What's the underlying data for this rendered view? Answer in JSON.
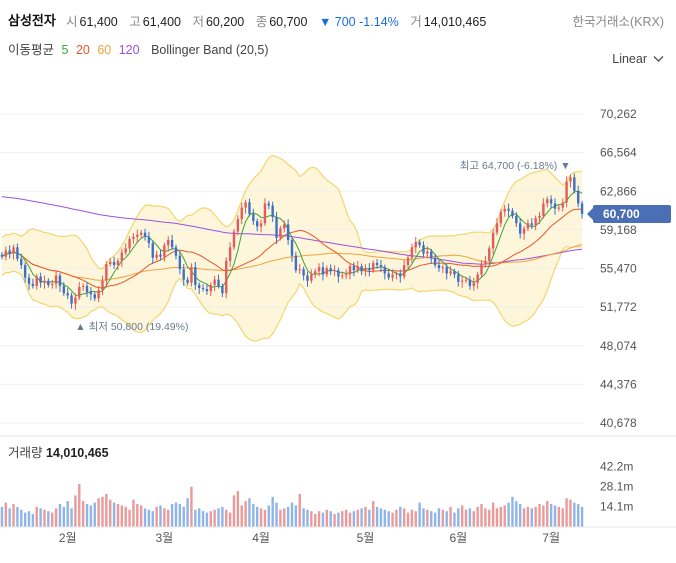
{
  "header": {
    "stock_name": "삼성전자",
    "open_label": "시",
    "open": "61,400",
    "high_label": "고",
    "high": "61,400",
    "low_label": "저",
    "low": "60,200",
    "close_label": "종",
    "close": "60,700",
    "change": "▼ 700 -1.14%",
    "volume_label": "거",
    "volume": "14,010,465",
    "exchange": "한국거래소(KRX)"
  },
  "indicators": {
    "ma_label": "이동평균",
    "ma5": "5",
    "ma20": "20",
    "ma60": "60",
    "ma120": "120",
    "bollinger": "Bollinger Band (20,5)"
  },
  "scale": {
    "label": "Linear"
  },
  "colors": {
    "up": "#e35b5b",
    "down": "#3f6fc6",
    "ma5": "#3aa53a",
    "ma20": "#e8562a",
    "ma60": "#f0a23c",
    "ma120": "#9b52e0",
    "band_fill": "#fdf6da",
    "band_line": "#f3d66d",
    "vol_up": "#eb9a9a",
    "vol_down": "#8fb4e8",
    "price_tag": "#4b6fb5"
  },
  "chart_data": [
    {
      "type": "candlestick",
      "title": "삼성전자",
      "y_ticks": [
        "70,262",
        "66,564",
        "62,866",
        "59,168",
        "55,470",
        "51,772",
        "48,074",
        "44,376",
        "40,678"
      ],
      "y_tick_values": [
        70262,
        66564,
        62866,
        59168,
        55470,
        51772,
        48074,
        44376,
        40678
      ],
      "x_ticks": [
        "2월",
        "3월",
        "4월",
        "5월",
        "6월",
        "7월"
      ],
      "x_tick_index": [
        17,
        42,
        67,
        94,
        118,
        142
      ],
      "last_price_label": "60,700",
      "high_annotation": "최고 64,700 (-6.18%) ▼",
      "low_annotation": "▲ 최저 50,800 (19.49%)",
      "high_annotation_index": 146,
      "low_annotation_index": 20,
      "closes": [
        56600,
        57200,
        56900,
        57500,
        56400,
        55800,
        54600,
        54000,
        53800,
        54700,
        54100,
        54300,
        53900,
        54000,
        54800,
        53800,
        53100,
        52900,
        52100,
        52700,
        53700,
        53800,
        53200,
        53000,
        52600,
        53400,
        54300,
        55900,
        56100,
        55800,
        56200,
        57000,
        57400,
        58300,
        58500,
        58700,
        58900,
        58500,
        57900,
        56500,
        56800,
        56600,
        57700,
        58200,
        57500,
        56700,
        55400,
        54400,
        54100,
        55600,
        53900,
        53600,
        53500,
        53300,
        53900,
        54400,
        53800,
        53100,
        56200,
        57500,
        59000,
        60200,
        61300,
        61800,
        60700,
        60000,
        59500,
        59800,
        61700,
        61500,
        60400,
        58400,
        59300,
        59700,
        58200,
        56700,
        55300,
        55400,
        54800,
        54300,
        54900,
        55200,
        55600,
        54900,
        55500,
        55200,
        55300,
        54700,
        54800,
        54900,
        55700,
        55300,
        55700,
        55200,
        55500,
        55300,
        56000,
        55800,
        55600,
        55000,
        54600,
        54900,
        55000,
        54700,
        55800,
        56500,
        57500,
        58000,
        57700,
        56900,
        57100,
        56500,
        55800,
        55500,
        55600,
        55000,
        55200,
        54900,
        54200,
        54300,
        54400,
        53800,
        54100,
        54900,
        55900,
        56200,
        57400,
        58900,
        59800,
        60900,
        61200,
        61000,
        60500,
        59800,
        58800,
        59300,
        59800,
        59600,
        60300,
        60500,
        61700,
        62100,
        61700,
        61200,
        61300,
        61800,
        63800,
        64200,
        62900,
        61700,
        60700
      ],
      "volumes_m": [
        14,
        17,
        13,
        16,
        14,
        12,
        10,
        11,
        9,
        14,
        13,
        12,
        11,
        10,
        13,
        16,
        14,
        18,
        13,
        22,
        30,
        18,
        16,
        15,
        17,
        20,
        21,
        23,
        19,
        17,
        16,
        15,
        14,
        12,
        19,
        16,
        15,
        13,
        12,
        11,
        14,
        15,
        13,
        12,
        16,
        17,
        16,
        14,
        20,
        28,
        12,
        13,
        11,
        10,
        11,
        12,
        13,
        14,
        12,
        10,
        22,
        25,
        15,
        18,
        20,
        16,
        14,
        13,
        12,
        15,
        21,
        17,
        12,
        13,
        14,
        17,
        15,
        23,
        13,
        12,
        11,
        9,
        11,
        10,
        12,
        11,
        9,
        10,
        11,
        12,
        10,
        11,
        12,
        13,
        14,
        12,
        18,
        14,
        13,
        12,
        11,
        10,
        12,
        14,
        13,
        10,
        12,
        11,
        17,
        13,
        12,
        11,
        10,
        13,
        12,
        11,
        14,
        10,
        13,
        15,
        12,
        13,
        11,
        14,
        16,
        13,
        12,
        17,
        13,
        14,
        15,
        17,
        21,
        18,
        16,
        13,
        14,
        13,
        14,
        16,
        15,
        18,
        16,
        15,
        14,
        13,
        20,
        19,
        17,
        16,
        14
      ],
      "volume_ticks": [
        "42.2m",
        "28.1m",
        "14.1m"
      ],
      "volume_tick_values_m": [
        42.2,
        28.1,
        14.1
      ],
      "volume_title": "거래량",
      "volume_value": "14,010,465"
    }
  ]
}
